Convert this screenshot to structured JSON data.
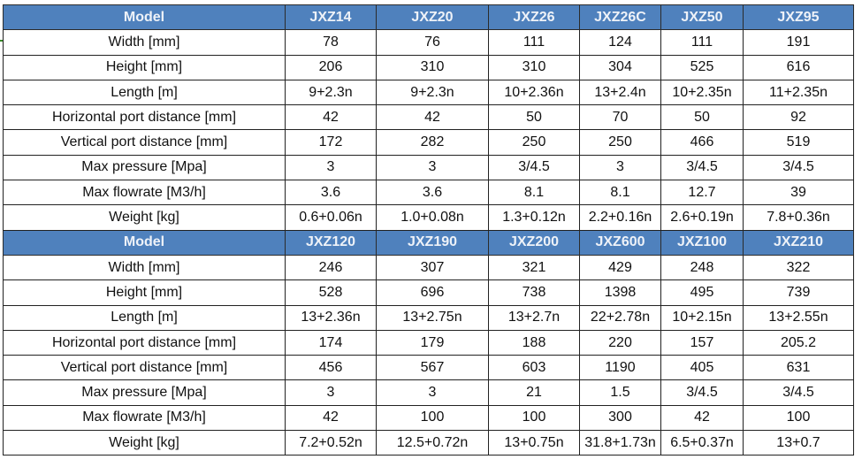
{
  "tables": [
    {
      "header": [
        "Model",
        "JXZ14",
        "JXZ20",
        "JXZ26",
        "JXZ26C",
        "JXZ50",
        "JXZ95"
      ],
      "rows": [
        [
          "Width [mm]",
          "78",
          "76",
          "111",
          "124",
          "111",
          "191"
        ],
        [
          "Height [mm]",
          "206",
          "310",
          "310",
          "304",
          "525",
          "616"
        ],
        [
          "Length [m]",
          "9+2.3n",
          "9+2.3n",
          "10+2.36n",
          "13+2.4n",
          "10+2.35n",
          "11+2.35n"
        ],
        [
          "Horizontal port distance [mm]",
          "42",
          "42",
          "50",
          "70",
          "50",
          "92"
        ],
        [
          "Vertical port distance  [mm]",
          "172",
          "282",
          "250",
          "250",
          "466",
          "519"
        ],
        [
          "Max pressure [Mpa]",
          "3",
          "3",
          "3/4.5",
          "3",
          "3/4.5",
          "3/4.5"
        ],
        [
          "Max flowrate  [M3/h]",
          "3.6",
          "3.6",
          "8.1",
          "8.1",
          "12.7",
          "39"
        ],
        [
          "Weight [kg]",
          "0.6+0.06n",
          "1.0+0.08n",
          "1.3+0.12n",
          "2.2+0.16n",
          "2.6+0.19n",
          "7.8+0.36n"
        ]
      ]
    },
    {
      "header": [
        "Model",
        "JXZ120",
        "JXZ190",
        "JXZ200",
        "JXZ600",
        "JXZ100",
        "JXZ210"
      ],
      "rows": [
        [
          "Width [mm]",
          "246",
          "307",
          "321",
          "429",
          "248",
          "322"
        ],
        [
          "Height [mm]",
          "528",
          "696",
          "738",
          "1398",
          "495",
          "739"
        ],
        [
          "Length [m]",
          "13+2.36n",
          "13+2.75n",
          "13+2.7n",
          "22+2.78n",
          "10+2.15n",
          "13+2.55n"
        ],
        [
          "Horizontal port distance [mm]",
          "174",
          "179",
          "188",
          "220",
          "157",
          "205.2"
        ],
        [
          "Vertical port distance  [mm]",
          "456",
          "567",
          "603",
          "1190",
          "405",
          "631"
        ],
        [
          "Max pressure [Mpa]",
          "3",
          "3",
          "21",
          "1.5",
          "3/4.5",
          "3/4.5"
        ],
        [
          "Max flowrate  [M3/h]",
          "42",
          "100",
          "100",
          "300",
          "42",
          "100"
        ],
        [
          "Weight [kg]",
          "7.2+0.52n",
          "12.5+0.72n",
          "13+0.75n",
          "31.8+1.73n",
          "6.5+0.37n",
          "13+0.7"
        ]
      ]
    }
  ],
  "colors": {
    "header_bg": "#4f81bd",
    "header_text": "#eef2f8",
    "border": "#222222"
  }
}
